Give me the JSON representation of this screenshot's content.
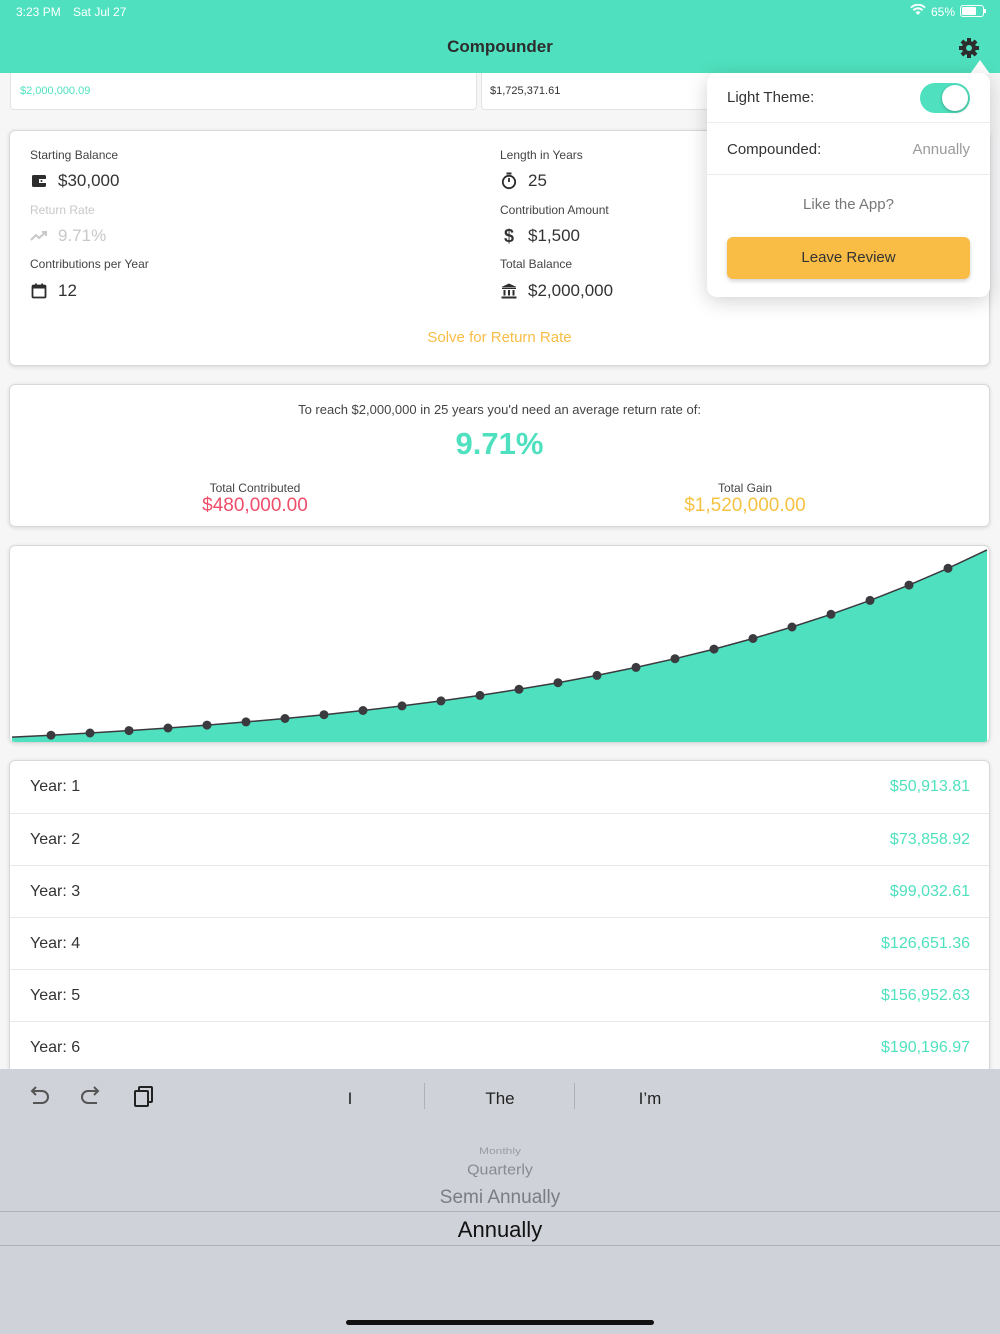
{
  "status": {
    "time": "3:23 PM",
    "date": "Sat Jul 27",
    "battery": "65%"
  },
  "nav": {
    "title": "Compounder"
  },
  "top_tabs": [
    "$2,000,000.09",
    "$1,725,371.61"
  ],
  "form": {
    "starting_balance": {
      "label": "Starting Balance",
      "value": "$30,000"
    },
    "length_years": {
      "label": "Length in Years",
      "value": "25"
    },
    "return_rate": {
      "label": "Return Rate",
      "value": "9.71%"
    },
    "contribution_amount": {
      "label": "Contribution Amount",
      "value": "$1,500"
    },
    "contributions_per_year": {
      "label": "Contributions per Year",
      "value": "12"
    },
    "total_balance": {
      "label": "Total Balance",
      "value": "$2,000,000"
    },
    "solve_label": "Solve for Return Rate"
  },
  "result": {
    "sentence": "To reach $2,000,000 in 25 years you'd need an average return rate of:",
    "rate": "9.71%",
    "contributed_label": "Total Contributed",
    "contributed_value": "$480,000.00",
    "gain_label": "Total Gain",
    "gain_value": "$1,520,000.00"
  },
  "chart_data": {
    "type": "area",
    "x": [
      0,
      1,
      2,
      3,
      4,
      5,
      6,
      7,
      8,
      9,
      10,
      11,
      12,
      13,
      14,
      15,
      16,
      17,
      18,
      19,
      20,
      21,
      22,
      23,
      24,
      25
    ],
    "values": [
      30000,
      50913.81,
      73858.92,
      99032.61,
      126651.36,
      156952.63,
      190196.97,
      226669.9,
      266684.0,
      310581.0,
      358740.0,
      411578.0,
      469547.0,
      533146.0,
      602922.0,
      679473.0,
      763458.0,
      855600.0,
      956692.0,
      1067600.0,
      1189281.0,
      1322777.0,
      1469240.0,
      1629926.0,
      1806217.0,
      2000000.09
    ],
    "ylim": [
      0,
      2000000.09
    ],
    "color": "#4fe1bf",
    "marker_color": "#3a3a3f"
  },
  "years": [
    {
      "label": "Year: 1",
      "value": "$50,913.81"
    },
    {
      "label": "Year: 2",
      "value": "$73,858.92"
    },
    {
      "label": "Year: 3",
      "value": "$99,032.61"
    },
    {
      "label": "Year: 4",
      "value": "$126,651.36"
    },
    {
      "label": "Year: 5",
      "value": "$156,952.63"
    },
    {
      "label": "Year: 6",
      "value": "$190,196.97"
    }
  ],
  "popover": {
    "theme_label": "Light Theme:",
    "theme_on": true,
    "compounded_label": "Compounded:",
    "compounded_value": "Annually",
    "like_label": "Like the App?",
    "review_label": "Leave Review"
  },
  "keyboard": {
    "suggestions": [
      "I",
      "The",
      "I’m"
    ],
    "picker": [
      "Monthly",
      "Quarterly",
      "Semi Annually",
      "Annually"
    ]
  },
  "colors": {
    "accent": "#4fe1bf",
    "orange": "#f9bd45",
    "red": "#ef4e6a",
    "gold": "#f6c243"
  }
}
